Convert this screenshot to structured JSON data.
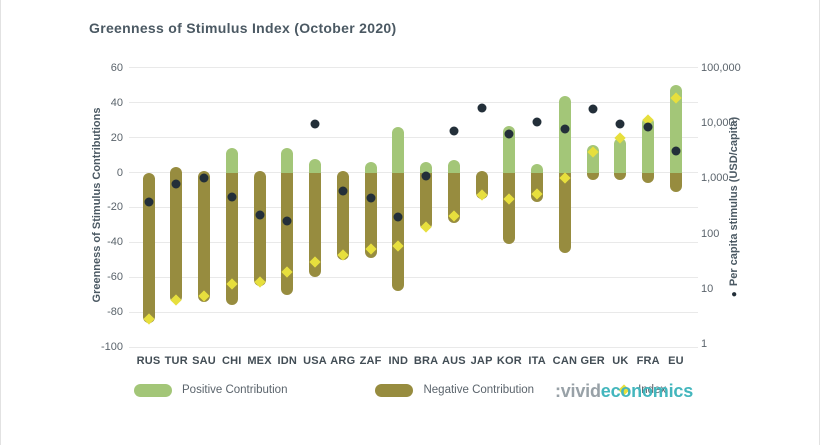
{
  "page": {
    "title": "Greenness of Stimulus Index (October 2020)"
  },
  "chart_data": {
    "type": "bar",
    "subtype": "diverging stacked bars with scatter overlay",
    "title": "Greenness of Stimulus Index (October 2020)",
    "grid": true,
    "legend_position": "bottom",
    "categories": [
      "RUS",
      "TUR",
      "SAU",
      "CHI",
      "MEX",
      "IDN",
      "USA",
      "ARG",
      "ZAF",
      "IND",
      "BRA",
      "AUS",
      "JAP",
      "KOR",
      "ITA",
      "CAN",
      "GER",
      "UK",
      "FRA",
      "EU"
    ],
    "left_axis": {
      "label": "Greenness of Stimulus Contributions",
      "range": [
        -100,
        60
      ],
      "ticks": [
        60,
        40,
        20,
        0,
        -20,
        -40,
        -60,
        -80,
        -100
      ]
    },
    "right_axis": {
      "label": "Per capita stimulus (USD/capita)",
      "marker": "●",
      "scale": "log",
      "ticks": [
        100000,
        10000,
        1000,
        100,
        10,
        1
      ],
      "tick_labels": [
        "100,000",
        "10,000",
        "1,000",
        "100",
        "10",
        "1"
      ]
    },
    "series": [
      {
        "name": "Positive Contribution",
        "type": "bar",
        "color": "#a3c678",
        "values": [
          0,
          3,
          1,
          14,
          1,
          14,
          8,
          1,
          6,
          26,
          6,
          7,
          1,
          27,
          5,
          44,
          16,
          20,
          32,
          50
        ]
      },
      {
        "name": "Negative Contribution",
        "type": "bar",
        "color": "#978c3f",
        "values": [
          -86,
          -75,
          -74,
          -76,
          -65,
          -70,
          -60,
          -50,
          -49,
          -68,
          -33,
          -29,
          -15,
          -41,
          -17,
          -46,
          -4,
          -4,
          -6,
          -11
        ]
      },
      {
        "name": "Index",
        "type": "scatter",
        "marker": "diamond",
        "color": "#e7df3d",
        "values": [
          -84,
          -73,
          -71,
          -64,
          -63,
          -57,
          -51,
          -47,
          -44,
          -42,
          -31,
          -25,
          -13,
          -15,
          -12,
          -3,
          12,
          20,
          30,
          43
        ]
      },
      {
        "name": "Per capita stimulus (USD/capita)",
        "type": "scatter",
        "marker": "circle",
        "color": "#232f39",
        "axis": "right",
        "values_usd_per_capita": [
          380,
          800,
          1000,
          470,
          220,
          170,
          9500,
          600,
          450,
          200,
          1100,
          7200,
          19000,
          6500,
          10500,
          8000,
          18000,
          9600,
          8700,
          3100
        ]
      }
    ]
  },
  "logo": {
    "prefix": ":vivid",
    "suffix": "economics",
    "prefix_color": "#98a1a7",
    "suffix_color": "#43b6bd"
  }
}
